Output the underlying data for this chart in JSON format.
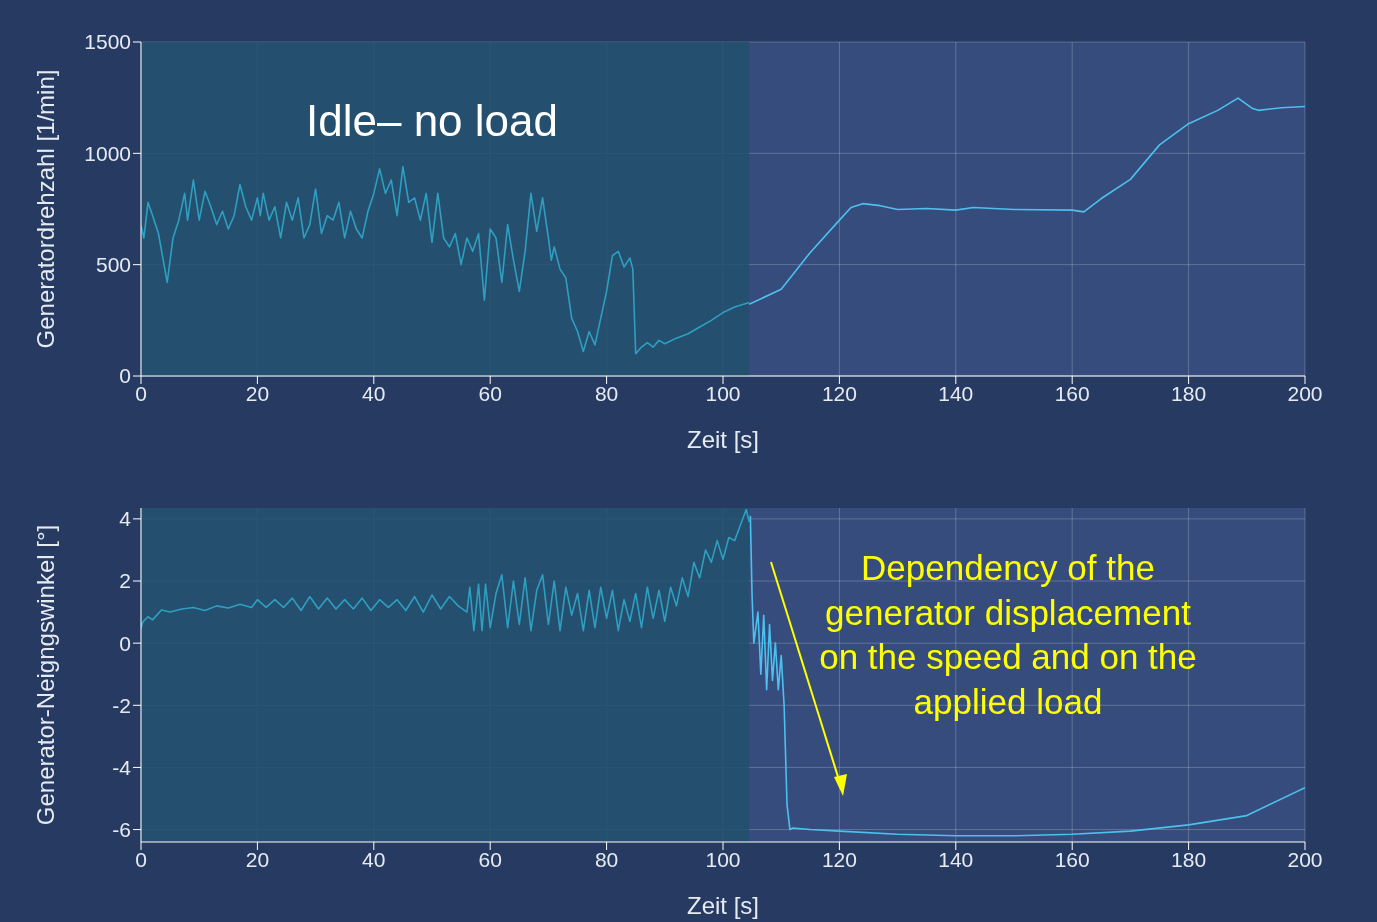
{
  "chart_data": [
    {
      "type": "line",
      "xlabel": "Zeit [s]",
      "ylabel": "Generatordrehzahl [1/min]",
      "xlim": [
        0,
        200
      ],
      "xticks": [
        0,
        20,
        40,
        60,
        80,
        100,
        120,
        140,
        160,
        180,
        200
      ],
      "ylim": [
        0,
        1500
      ],
      "yticks": [
        0,
        500,
        1000,
        1500
      ],
      "grid": true,
      "annotations": [
        "Idle– no load"
      ],
      "bands": [
        {
          "axis": "x",
          "from": 0,
          "to": 104.5,
          "color": "#22506c"
        }
      ],
      "series": [
        {
          "color": "#2e9fc0",
          "x": [
            0,
            0.5,
            1.2,
            2,
            3,
            4.5,
            5.5,
            6.5,
            7.5,
            8,
            9,
            10,
            11,
            12,
            13,
            14,
            15,
            16,
            17,
            18,
            19,
            20,
            20.5,
            21,
            22,
            23,
            24,
            25,
            26,
            27,
            28,
            29,
            30,
            31,
            32,
            33,
            34,
            35,
            36,
            37,
            38,
            39,
            40,
            41,
            42,
            43,
            44,
            45,
            46,
            47,
            48,
            49,
            50,
            51,
            52,
            53,
            54,
            55,
            56,
            57,
            58,
            59,
            60,
            61,
            62,
            63,
            64,
            65,
            66,
            67,
            68,
            69,
            70,
            70.5,
            71,
            72,
            73,
            74,
            75,
            76,
            77,
            78,
            79,
            80,
            81,
            82,
            83,
            84,
            84.5,
            85,
            86,
            87,
            88,
            89,
            90,
            92,
            94,
            96,
            98,
            100,
            102,
            104.5
          ],
          "values": [
            675,
            620,
            780,
            720,
            640,
            420,
            620,
            700,
            820,
            700,
            880,
            700,
            830,
            760,
            680,
            740,
            660,
            720,
            860,
            760,
            700,
            800,
            720,
            820,
            700,
            760,
            620,
            780,
            700,
            800,
            620,
            680,
            840,
            640,
            720,
            700,
            780,
            620,
            740,
            660,
            620,
            740,
            820,
            930,
            820,
            880,
            720,
            940,
            780,
            800,
            700,
            820,
            600,
            820,
            620,
            580,
            640,
            500,
            620,
            560,
            640,
            340,
            660,
            620,
            420,
            680,
            520,
            380,
            560,
            820,
            650,
            800,
            620,
            520,
            580,
            480,
            440,
            260,
            200,
            110,
            200,
            140,
            260,
            380,
            540,
            560,
            490,
            530,
            480,
            100,
            130,
            150,
            130,
            160,
            145,
            170,
            190,
            220,
            250,
            285,
            310,
            330
          ]
        },
        {
          "color": "#4cc0ee",
          "x": [
            104.5,
            110,
            115,
            120,
            122,
            124,
            127,
            130,
            135,
            140,
            143,
            150,
            160,
            162,
            165,
            170,
            175,
            180,
            185,
            188.5,
            191,
            192,
            196,
            200
          ],
          "values": [
            322,
            390,
            555,
            700,
            757,
            774,
            765,
            748,
            752,
            745,
            757,
            748,
            745,
            737,
            797,
            883,
            1038,
            1133,
            1193,
            1248,
            1201,
            1193,
            1205,
            1210
          ]
        }
      ]
    },
    {
      "type": "line",
      "xlabel": "Zeit [s]",
      "ylabel": "Generator-Neigngswinkel [°]",
      "xlim": [
        0,
        200
      ],
      "xticks": [
        0,
        20,
        40,
        60,
        80,
        100,
        120,
        140,
        160,
        180,
        200
      ],
      "ylim": [
        -6.4,
        4.35
      ],
      "yticks": [
        -6,
        -4,
        -2,
        0,
        2,
        4
      ],
      "grid": true,
      "annotations": [
        "Dependency of the generator displacement on the speed and on the applied load"
      ],
      "bands": [
        {
          "axis": "x",
          "from": 0,
          "to": 104.5,
          "color": "#22506c"
        }
      ],
      "series": [
        {
          "color": "#2e9fc0",
          "x": [
            0,
            0.3,
            1.2,
            2,
            3.5,
            5,
            7,
            9,
            11,
            13,
            15,
            17,
            19,
            20,
            21.5,
            23,
            24.5,
            26,
            27.5,
            29,
            30.5,
            32,
            33.5,
            35,
            36.5,
            38,
            39.5,
            41,
            42.5,
            44,
            45.5,
            47,
            48.5,
            50,
            51.5,
            53,
            54.5,
            56,
            56.5,
            57.2,
            58,
            58.6,
            59.2,
            60,
            61,
            62,
            63,
            64,
            65,
            66,
            67,
            68,
            69,
            70,
            71,
            72,
            73,
            74,
            75,
            76,
            77,
            78,
            79,
            80,
            81,
            82,
            83,
            84,
            85,
            86,
            87,
            88,
            89,
            90,
            91,
            92,
            93,
            94,
            95,
            96,
            97,
            98,
            99,
            100,
            101,
            102,
            103,
            104,
            104.5
          ],
          "values": [
            0.48,
            0.68,
            0.85,
            0.75,
            1.07,
            1.0,
            1.1,
            1.15,
            1.05,
            1.2,
            1.13,
            1.25,
            1.15,
            1.4,
            1.15,
            1.4,
            1.15,
            1.45,
            1.05,
            1.5,
            1.1,
            1.45,
            1.1,
            1.4,
            1.1,
            1.45,
            1.05,
            1.4,
            1.15,
            1.4,
            1.05,
            1.5,
            1.0,
            1.55,
            1.1,
            1.5,
            1.2,
            1.0,
            1.8,
            0.4,
            1.9,
            0.4,
            1.9,
            0.5,
            1.6,
            2.2,
            0.5,
            2.0,
            0.6,
            2.1,
            0.4,
            1.7,
            2.2,
            0.6,
            2.0,
            0.4,
            1.8,
            0.9,
            1.6,
            0.4,
            1.7,
            0.5,
            1.8,
            0.8,
            1.7,
            0.4,
            1.4,
            0.7,
            1.6,
            0.5,
            1.8,
            0.8,
            1.7,
            0.7,
            1.8,
            1.2,
            2.1,
            1.5,
            2.6,
            2.1,
            3.0,
            2.6,
            3.3,
            2.7,
            3.4,
            3.3,
            3.8,
            4.3,
            3.9
          ]
        },
        {
          "color": "#4cc0ee",
          "x": [
            104.7,
            105,
            105.3,
            106,
            106.5,
            107,
            107.5,
            108,
            108.5,
            109,
            109.5,
            110,
            110.5,
            111,
            111.5,
            112,
            115,
            120,
            130,
            140,
            150,
            160,
            170,
            180,
            190,
            200
          ],
          "values": [
            4.1,
            1.5,
            0.0,
            1.0,
            -1.0,
            0.9,
            -1.5,
            0.6,
            -1.2,
            0.0,
            -1.5,
            -0.4,
            -2.0,
            -5.2,
            -6.0,
            -5.95,
            -6.0,
            -6.05,
            -6.15,
            -6.2,
            -6.2,
            -6.15,
            -6.05,
            -5.85,
            -5.55,
            -4.65
          ]
        }
      ]
    }
  ]
}
